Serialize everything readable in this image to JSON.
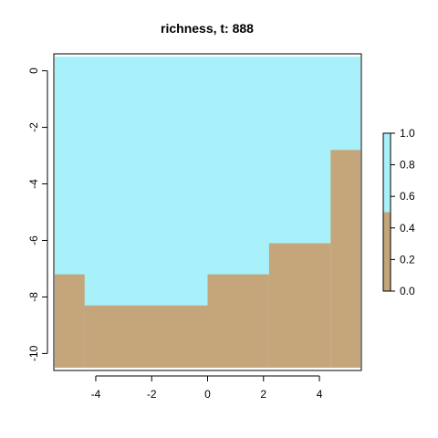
{
  "chart_data": {
    "type": "heatmap",
    "title": "richness, t: 888",
    "xlabel": "",
    "ylabel": "",
    "xlim": [
      -5.5,
      5.5
    ],
    "ylim": [
      -10.6,
      0.6
    ],
    "x_ticks": [
      -4,
      -2,
      0,
      2,
      4
    ],
    "x_tick_labels": [
      "-4",
      "-2",
      "0",
      "2",
      "4"
    ],
    "y_ticks": [
      0,
      -2,
      -4,
      -6,
      -8,
      -10
    ],
    "y_tick_labels": [
      "0",
      "-2",
      "-4",
      "-6",
      "-8",
      "-10"
    ],
    "grid": false,
    "colors": {
      "high": "#a8f0fa",
      "low": "#c4a67a",
      "frame": "#000000",
      "background": "#ffffff"
    },
    "cells": {
      "x_edges": [
        -5.5,
        -4.4,
        -3.3,
        -2.2,
        -1.1,
        0,
        1.1,
        2.2,
        3.3,
        4.4,
        5.5
      ],
      "y_edges": [
        -10.6,
        -7.2,
        -8.3,
        -8.3,
        -8.3,
        -8.3,
        -7.2,
        -7.2,
        -6.1,
        -6.1,
        -2.8
      ],
      "note_x_edges_are_column_boundaries": true
    },
    "boundary": [
      {
        "x0": -5.5,
        "x1": -4.4,
        "y": -7.2
      },
      {
        "x0": -4.4,
        "x1": 0.0,
        "y": -8.3
      },
      {
        "x0": 0.0,
        "x1": 2.2,
        "y": -7.2
      },
      {
        "x0": 2.2,
        "x1": 4.4,
        "y": -6.1
      },
      {
        "x0": 4.4,
        "x1": 5.5,
        "y": -2.8
      }
    ],
    "legend": {
      "placement": "right",
      "min": 0.0,
      "max": 1.0,
      "threshold": 0.5,
      "ticks": [
        0.0,
        0.2,
        0.4,
        0.6,
        0.8,
        1.0
      ],
      "tick_labels": [
        "0.0",
        "0.2",
        "0.4",
        "0.6",
        "0.8",
        "1.0"
      ]
    }
  }
}
